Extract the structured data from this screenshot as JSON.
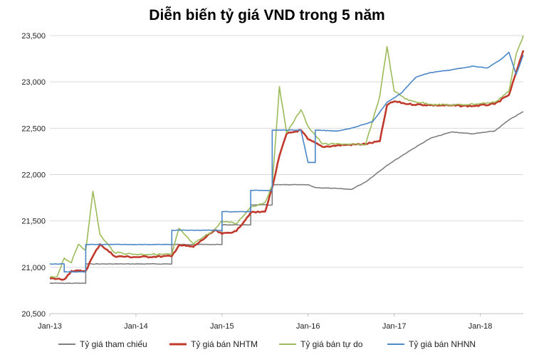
{
  "chart_data": {
    "type": "line",
    "title": "Diễn biến tỷ giá VND trong 5 năm",
    "xlabel": "",
    "ylabel": "",
    "ylim": [
      20500,
      23500
    ],
    "xlim": [
      "2013-01",
      "2018-07"
    ],
    "x_ticks": [
      "Jan-13",
      "Jan-14",
      "Jan-15",
      "Jan-16",
      "Jan-17",
      "Jan-18"
    ],
    "y_ticks": [
      "20,500",
      "21,000",
      "21,500",
      "22,000",
      "22,500",
      "23,000",
      "23,500"
    ],
    "grid": "horizontal",
    "legend_position": "bottom",
    "series": [
      {
        "name": "Tỷ giá tham chiếu",
        "color": "#7f7f7f",
        "points": [
          [
            "2013-01",
            20828
          ],
          [
            "2013-06",
            20828
          ],
          [
            "2013-06",
            21036
          ],
          [
            "2014-06",
            21036
          ],
          [
            "2014-06",
            21246
          ],
          [
            "2015-01",
            21246
          ],
          [
            "2015-01",
            21458
          ],
          [
            "2015-05",
            21458
          ],
          [
            "2015-05",
            21673
          ],
          [
            "2015-08",
            21673
          ],
          [
            "2015-08",
            21890
          ],
          [
            "2016-01",
            21890
          ],
          [
            "2016-02",
            21860
          ],
          [
            "2016-05",
            21850
          ],
          [
            "2016-07",
            21840
          ],
          [
            "2016-09",
            21920
          ],
          [
            "2016-12",
            22100
          ],
          [
            "2017-03",
            22250
          ],
          [
            "2017-06",
            22390
          ],
          [
            "2017-09",
            22460
          ],
          [
            "2017-12",
            22440
          ],
          [
            "2018-03",
            22470
          ],
          [
            "2018-05",
            22590
          ],
          [
            "2018-07",
            22680
          ]
        ]
      },
      {
        "name": "Tỷ giá bán NHTM",
        "color": "#c0392b",
        "points": [
          [
            "2013-01",
            20880
          ],
          [
            "2013-03",
            20870
          ],
          [
            "2013-04",
            20960
          ],
          [
            "2013-06",
            20960
          ],
          [
            "2013-07",
            21120
          ],
          [
            "2013-08",
            21250
          ],
          [
            "2013-10",
            21120
          ],
          [
            "2014-01",
            21110
          ],
          [
            "2014-06",
            21120
          ],
          [
            "2014-07",
            21240
          ],
          [
            "2014-09",
            21220
          ],
          [
            "2014-12",
            21400
          ],
          [
            "2015-01",
            21360
          ],
          [
            "2015-03",
            21390
          ],
          [
            "2015-05",
            21590
          ],
          [
            "2015-07",
            21600
          ],
          [
            "2015-08",
            21860
          ],
          [
            "2015-09",
            22200
          ],
          [
            "2015-10",
            22440
          ],
          [
            "2015-12",
            22480
          ],
          [
            "2016-01",
            22380
          ],
          [
            "2016-03",
            22300
          ],
          [
            "2016-06",
            22320
          ],
          [
            "2016-09",
            22330
          ],
          [
            "2016-11",
            22360
          ],
          [
            "2016-12",
            22750
          ],
          [
            "2017-01",
            22790
          ],
          [
            "2017-03",
            22760
          ],
          [
            "2017-06",
            22750
          ],
          [
            "2017-09",
            22745
          ],
          [
            "2017-12",
            22740
          ],
          [
            "2018-03",
            22760
          ],
          [
            "2018-05",
            22860
          ],
          [
            "2018-06",
            23100
          ],
          [
            "2018-07",
            23340
          ]
        ]
      },
      {
        "name": "Tỷ giá bán tự do",
        "color": "#9bbb59",
        "points": [
          [
            "2013-01",
            20890
          ],
          [
            "2013-02",
            20900
          ],
          [
            "2013-03",
            21100
          ],
          [
            "2013-04",
            21050
          ],
          [
            "2013-05",
            21250
          ],
          [
            "2013-06",
            21180
          ],
          [
            "2013-07",
            21820
          ],
          [
            "2013-08",
            21350
          ],
          [
            "2013-10",
            21160
          ],
          [
            "2014-01",
            21140
          ],
          [
            "2014-06",
            21140
          ],
          [
            "2014-07",
            21420
          ],
          [
            "2014-09",
            21250
          ],
          [
            "2014-12",
            21410
          ],
          [
            "2015-01",
            21500
          ],
          [
            "2015-03",
            21470
          ],
          [
            "2015-05",
            21650
          ],
          [
            "2015-07",
            21700
          ],
          [
            "2015-08",
            21880
          ],
          [
            "2015-09",
            22950
          ],
          [
            "2015-10",
            22450
          ],
          [
            "2015-12",
            22700
          ],
          [
            "2016-01",
            22520
          ],
          [
            "2016-03",
            22330
          ],
          [
            "2016-06",
            22330
          ],
          [
            "2016-09",
            22320
          ],
          [
            "2016-11",
            22850
          ],
          [
            "2016-12",
            23380
          ],
          [
            "2017-01",
            22900
          ],
          [
            "2017-03",
            22800
          ],
          [
            "2017-06",
            22760
          ],
          [
            "2017-09",
            22750
          ],
          [
            "2017-12",
            22760
          ],
          [
            "2018-03",
            22780
          ],
          [
            "2018-05",
            22900
          ],
          [
            "2018-06",
            23300
          ],
          [
            "2018-07",
            23500
          ]
        ]
      },
      {
        "name": "Tỷ giá bán NHNN",
        "color": "#4a86c8",
        "points": [
          [
            "2013-01",
            21036
          ],
          [
            "2013-03",
            21036
          ],
          [
            "2013-03",
            20950
          ],
          [
            "2013-06",
            20950
          ],
          [
            "2013-06",
            21246
          ],
          [
            "2014-06",
            21246
          ],
          [
            "2014-06",
            21400
          ],
          [
            "2015-01",
            21400
          ],
          [
            "2015-01",
            21600
          ],
          [
            "2015-05",
            21600
          ],
          [
            "2015-05",
            21830
          ],
          [
            "2015-08",
            21830
          ],
          [
            "2015-08",
            22480
          ],
          [
            "2015-12",
            22480
          ],
          [
            "2016-01",
            22130
          ],
          [
            "2016-02",
            22130
          ],
          [
            "2016-02",
            22480
          ],
          [
            "2016-05",
            22470
          ],
          [
            "2016-07",
            22500
          ],
          [
            "2016-10",
            22570
          ],
          [
            "2016-12",
            22780
          ],
          [
            "2017-02",
            22880
          ],
          [
            "2017-04",
            23050
          ],
          [
            "2017-06",
            23100
          ],
          [
            "2017-09",
            23130
          ],
          [
            "2017-12",
            23170
          ],
          [
            "2018-02",
            23150
          ],
          [
            "2018-04",
            23250
          ],
          [
            "2018-05",
            23320
          ],
          [
            "2018-06",
            23080
          ],
          [
            "2018-07",
            23290
          ]
        ]
      }
    ]
  }
}
